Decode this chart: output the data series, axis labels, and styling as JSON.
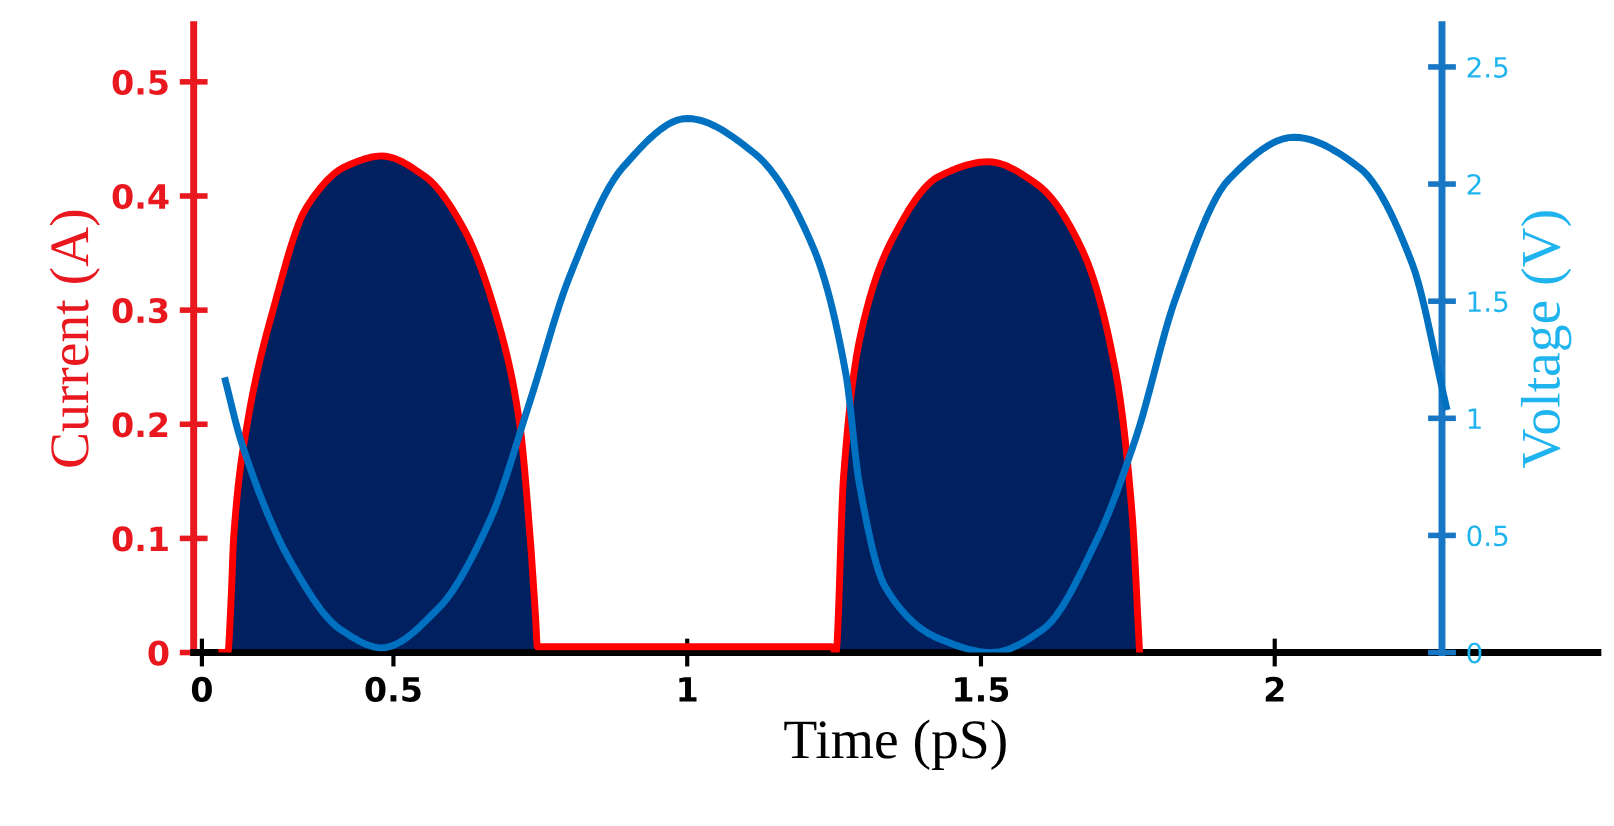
{
  "chart_data": {
    "type": "area",
    "xlabel": "Time (pS)",
    "ylabel": "Current (A)",
    "y2label": "Voltage (V)",
    "xlim": [
      0.16,
      2.55
    ],
    "xticks": [
      {
        "value": 0.174,
        "label": "0"
      },
      0.5,
      1,
      1.5,
      2
    ],
    "ylim": [
      0,
      0.55
    ],
    "yticks": [
      0,
      0.1,
      0.2,
      0.3,
      0.4,
      0.5
    ],
    "y2lim": [
      0,
      2.68
    ],
    "y2ticks": [
      0,
      0.5,
      1,
      1.5,
      2,
      2.5
    ],
    "grid": false,
    "series": [
      {
        "color": "#002060",
        "x": [
          0.218,
          0.224,
          0.228,
          0.251,
          0.295,
          0.352,
          0.419,
          0.48,
          0.554,
          0.621,
          0.678,
          0.715,
          0.732,
          0.742,
          0.745,
          1.246,
          1.253,
          1.266,
          1.293,
          1.35,
          1.428,
          1.512,
          1.596,
          1.673,
          1.73,
          1.757,
          1.77
        ],
        "values": [
          0,
          0.05,
          0.1,
          0.2,
          0.3,
          0.39,
          0.426,
          0.435,
          0.417,
          0.37,
          0.29,
          0.2,
          0.105,
          0.03,
          0.005,
          0.005,
          0,
          0.153,
          0.273,
          0.363,
          0.417,
          0.43,
          0.41,
          0.352,
          0.244,
          0.123,
          0
        ]
      },
      {
        "type": "line",
        "color": "#ff0000",
        "x": [
          0.208,
          0.218,
          0.224,
          0.228,
          0.251,
          0.295,
          0.352,
          0.419,
          0.48,
          0.554,
          0.621,
          0.678,
          0.715,
          0.732,
          0.742,
          0.745,
          1.246,
          1.253,
          1.266,
          1.293,
          1.35,
          1.428,
          1.512,
          1.596,
          1.673,
          1.73,
          1.757,
          1.77
        ],
        "values": [
          0,
          0,
          0.05,
          0.1,
          0.2,
          0.3,
          0.39,
          0.426,
          0.435,
          0.417,
          0.37,
          0.29,
          0.2,
          0.105,
          0.03,
          0.005,
          0.005,
          0,
          0.153,
          0.273,
          0.363,
          0.417,
          0.43,
          0.41,
          0.352,
          0.244,
          0.123,
          0
        ]
      },
      {
        "type": "line",
        "color": "#0070c0",
        "axis": "y2",
        "x": [
          0.214,
          0.241,
          0.329,
          0.409,
          0.48,
          0.577,
          0.665,
          0.732,
          0.799,
          0.89,
          1.0,
          1.115,
          1.216,
          1.27,
          1.293,
          1.337,
          1.428,
          1.518,
          1.606,
          1.697,
          1.764,
          1.831,
          1.922,
          2.033,
          2.144,
          2.234,
          2.292
        ],
        "values": [
          1.16,
          0.9,
          0.37,
          0.1,
          0.02,
          0.19,
          0.57,
          1.07,
          1.6,
          2.07,
          2.28,
          2.13,
          1.72,
          1.19,
          0.72,
          0.28,
          0.06,
          0,
          0.1,
          0.48,
          0.92,
          1.51,
          2.02,
          2.2,
          2.07,
          1.66,
          1.05
        ]
      }
    ]
  }
}
